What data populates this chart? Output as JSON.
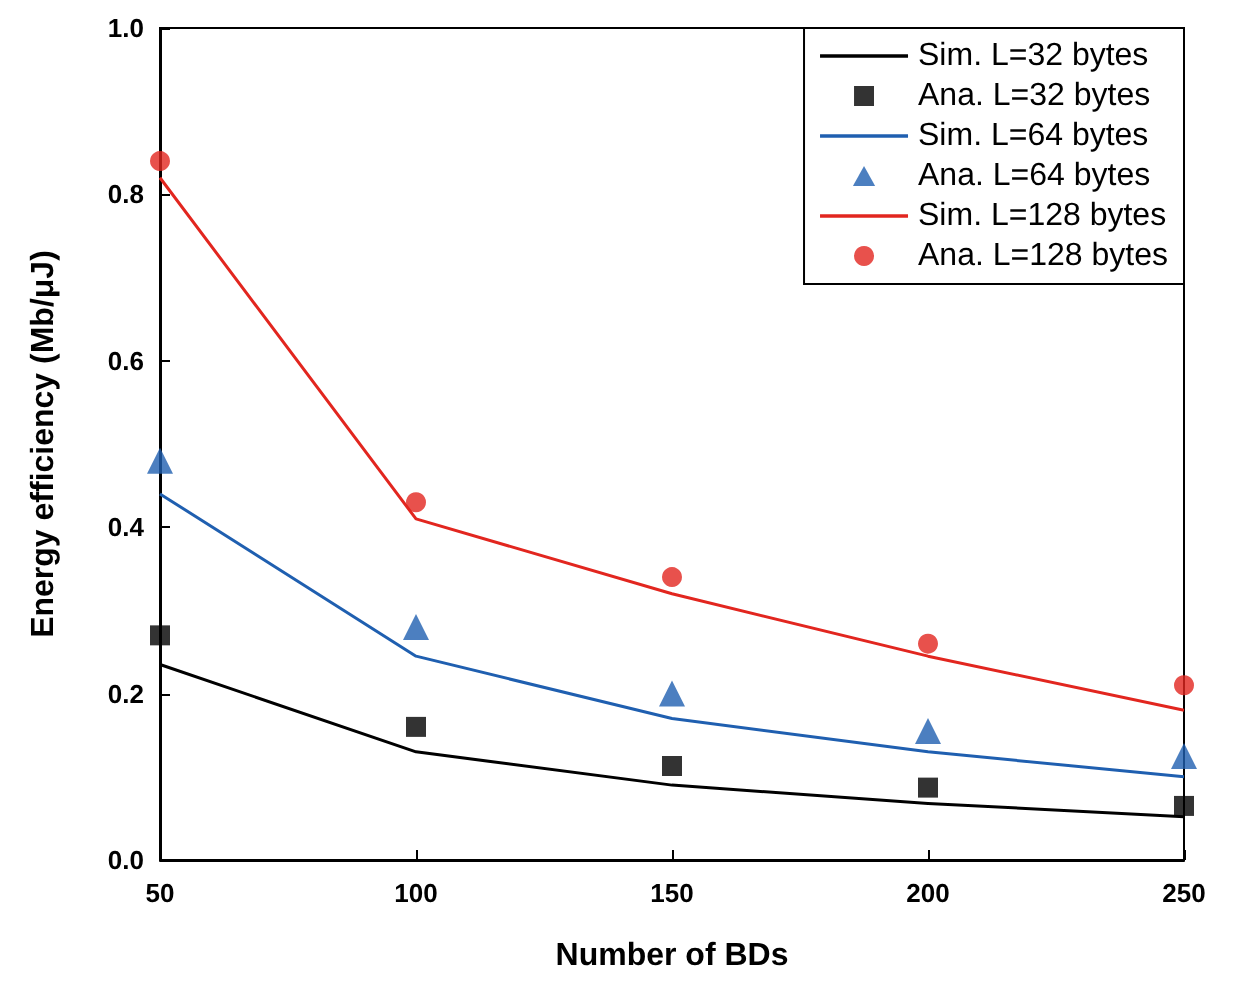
{
  "chart_data": {
    "type": "line",
    "xlabel": "Number of BDs",
    "ylabel": "Energy efficiency (Mb/μJ)",
    "x": [
      50,
      100,
      150,
      200,
      250
    ],
    "xlim": [
      50,
      250
    ],
    "xticks": [
      50,
      100,
      150,
      200,
      250
    ],
    "ylim": [
      0,
      1
    ],
    "yticks": [
      {
        "value": 0,
        "label": "0.0"
      },
      {
        "value": 0.2,
        "label": "0.2"
      },
      {
        "value": 0.4,
        "label": "0.4"
      },
      {
        "value": 0.6,
        "label": "0.6"
      },
      {
        "value": 0.8,
        "label": "0.8"
      },
      {
        "value": 1,
        "label": "1.0"
      }
    ],
    "grid": false,
    "legend": "top right",
    "series": [
      {
        "name": "Sim. L=32 bytes",
        "color": "#000000",
        "marker": "none",
        "values": [
          0.235,
          0.13,
          0.09,
          0.068,
          0.052
        ]
      },
      {
        "name": "Ana. L=32 bytes",
        "type": "scatter",
        "color": "#000000",
        "marker": "square",
        "values": [
          0.27,
          0.16,
          0.113,
          0.087,
          0.065
        ]
      },
      {
        "name": "Sim. L=64 bytes",
        "color": "#1f5fb0",
        "marker": "none",
        "values": [
          0.44,
          0.245,
          0.17,
          0.13,
          0.1
        ]
      },
      {
        "name": "Ana. L=64 bytes",
        "type": "scatter",
        "color": "#1f5fb0",
        "marker": "triangle",
        "values": [
          0.48,
          0.28,
          0.2,
          0.155,
          0.125
        ]
      },
      {
        "name": "Sim. L=128 bytes",
        "color": "#e2261f",
        "marker": "none",
        "values": [
          0.82,
          0.41,
          0.32,
          0.245,
          0.18
        ]
      },
      {
        "name": "Ana. L=128 bytes",
        "type": "scatter",
        "color": "#e2261f",
        "marker": "circle",
        "values": [
          0.84,
          0.43,
          0.34,
          0.26,
          0.21
        ]
      }
    ]
  }
}
